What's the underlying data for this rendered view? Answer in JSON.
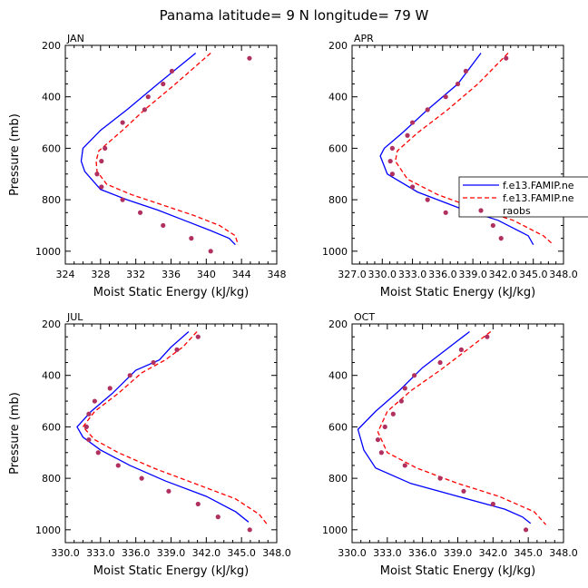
{
  "figure_title": "Panama   latitude= 9 N longitude= 79 W",
  "legend": {
    "entries": [
      {
        "label": "f.e13.FAMIP.ne",
        "color": "#0000ff",
        "dash": "solid"
      },
      {
        "label": "f.e13.FAMIP.ne",
        "color": "#ff0000",
        "dash": "dashed"
      },
      {
        "label": "raobs",
        "color": "#b03060",
        "marker": "dot"
      }
    ]
  },
  "colors": {
    "model1": "#0000ff",
    "model2": "#ff0000",
    "obs": "#b03060"
  },
  "chart_data": [
    {
      "type": "line",
      "panel_label": "JAN",
      "xlabel": "Moist Static Energy (kJ/kg)",
      "ylabel": "Pressure (mb)",
      "xlim": [
        324,
        348
      ],
      "ylim": [
        1050,
        200
      ],
      "xticks": [
        324,
        328,
        332,
        336,
        340,
        344,
        348
      ],
      "xtick_labels": [
        "324",
        "328",
        "332",
        "336",
        "340",
        "344",
        "348"
      ],
      "yticks": [
        200,
        400,
        600,
        800,
        1000
      ],
      "ytick_labels": [
        "200",
        "400",
        "600",
        "800",
        "1000"
      ],
      "show_ylabel": true,
      "series": [
        {
          "name": "f.e13.FAMIP.ne",
          "style": "model1",
          "x": [
            338.8,
            334.5,
            331,
            328,
            326,
            325.8,
            326.2,
            328,
            331,
            334.5,
            337.5,
            340.5,
            342.6,
            343.3
          ],
          "y": [
            230,
            350,
            450,
            530,
            600,
            650,
            690,
            760,
            800,
            840,
            880,
            920,
            950,
            975
          ]
        },
        {
          "name": "f.e13.FAMIP.ne",
          "style": "model2",
          "x": [
            340.5,
            336.5,
            333,
            330.5,
            327.8,
            327.5,
            327.6,
            328.7,
            331.5,
            335,
            338.5,
            341.5,
            343.3,
            343.6
          ],
          "y": [
            230,
            350,
            450,
            530,
            610,
            650,
            690,
            740,
            780,
            820,
            860,
            900,
            940,
            975
          ]
        },
        {
          "name": "raobs",
          "style": "obs",
          "x": [
            344.9,
            336.1,
            335.1,
            333.4,
            333.0,
            330.5,
            328.5,
            328.1,
            327.6,
            328.1,
            330.5,
            332.5,
            335.1,
            338.3,
            340.5
          ],
          "y": [
            250,
            300,
            350,
            400,
            450,
            500,
            600,
            650,
            700,
            750,
            800,
            850,
            900,
            950,
            1000
          ]
        }
      ]
    },
    {
      "type": "line",
      "panel_label": "APR",
      "xlabel": "Moist Static Energy (kJ/kg)",
      "ylabel": "",
      "xlim": [
        327.0,
        348.0
      ],
      "ylim": [
        1050,
        200
      ],
      "xticks": [
        327,
        330,
        333,
        336,
        339,
        342,
        345,
        348
      ],
      "xtick_labels": [
        "327.0",
        "330.0",
        "333.0",
        "336.0",
        "339.0",
        "342.0",
        "345.0",
        "348.0"
      ],
      "yticks": [
        200,
        400,
        600,
        800,
        1000
      ],
      "ytick_labels": [
        "200",
        "400",
        "600",
        "800",
        "1000"
      ],
      "show_ylabel": false,
      "series": [
        {
          "name": "f.e13.FAMIP.ne",
          "style": "model1",
          "x": [
            339.8,
            337.5,
            334.5,
            332,
            330.2,
            329.8,
            330.5,
            333.5,
            337.5,
            341.5,
            344.5,
            345.0
          ],
          "y": [
            230,
            350,
            450,
            540,
            600,
            630,
            700,
            770,
            830,
            880,
            940,
            975
          ]
        },
        {
          "name": "f.e13.FAMIP.ne",
          "style": "model2",
          "x": [
            342.5,
            339.5,
            336.5,
            333.5,
            331.5,
            331.3,
            332.5,
            335.5,
            339,
            343,
            346,
            347.0
          ],
          "y": [
            230,
            350,
            450,
            540,
            610,
            650,
            720,
            780,
            830,
            880,
            940,
            975
          ]
        },
        {
          "name": "raobs",
          "style": "obs",
          "x": [
            342.3,
            338.3,
            337.5,
            336.3,
            334.5,
            333.0,
            332.5,
            331.0,
            330.8,
            331.0,
            333.0,
            334.5,
            336.3,
            339.5,
            341.0,
            341.8
          ],
          "y": [
            250,
            300,
            350,
            400,
            450,
            500,
            550,
            600,
            650,
            700,
            750,
            800,
            850,
            825,
            900,
            950
          ]
        }
      ]
    },
    {
      "type": "line",
      "panel_label": "JUL",
      "xlabel": "Moist Static Energy (kJ/kg)",
      "ylabel": "Pressure (mb)",
      "xlim": [
        330.0,
        348.0
      ],
      "ylim": [
        1050,
        200
      ],
      "xticks": [
        330,
        333,
        336,
        339,
        342,
        345,
        348
      ],
      "xtick_labels": [
        "330.0",
        "333.0",
        "336.0",
        "339.0",
        "342.0",
        "345.0",
        "348.0"
      ],
      "yticks": [
        200,
        400,
        600,
        800,
        1000
      ],
      "ytick_labels": [
        "200",
        "400",
        "600",
        "800",
        "1000"
      ],
      "show_ylabel": true,
      "series": [
        {
          "name": "f.e13.FAMIP.ne",
          "style": "model1",
          "x": [
            340.5,
            339.0,
            338.0,
            336.0,
            334.0,
            332.2,
            331.0,
            331.5,
            333.0,
            335.5,
            338.5,
            342.0,
            344.5,
            345.6
          ],
          "y": [
            230,
            290,
            340,
            380,
            470,
            540,
            600,
            640,
            690,
            750,
            810,
            870,
            930,
            970
          ]
        },
        {
          "name": "f.e13.FAMIP.ne",
          "style": "model2",
          "x": [
            341.2,
            340.0,
            338.5,
            336.5,
            334.5,
            332.5,
            331.5,
            332.5,
            334.5,
            337.5,
            341.0,
            344.5,
            346.5,
            347.2
          ],
          "y": [
            230,
            290,
            340,
            390,
            470,
            540,
            600,
            650,
            700,
            760,
            820,
            880,
            940,
            980
          ]
        },
        {
          "name": "raobs",
          "style": "obs",
          "x": [
            341.3,
            339.5,
            337.5,
            335.5,
            333.8,
            332.5,
            332.0,
            331.8,
            332.0,
            332.8,
            334.5,
            336.5,
            338.8,
            341.3,
            343.0,
            345.7
          ],
          "y": [
            250,
            300,
            350,
            400,
            450,
            500,
            550,
            600,
            650,
            700,
            750,
            800,
            850,
            900,
            950,
            1000
          ]
        }
      ]
    },
    {
      "type": "line",
      "panel_label": "OCT",
      "xlabel": "Moist Static Energy (kJ/kg)",
      "ylabel": "",
      "xlim": [
        330.0,
        348.0
      ],
      "ylim": [
        1050,
        200
      ],
      "xticks": [
        330,
        333,
        336,
        339,
        342,
        345,
        348
      ],
      "xtick_labels": [
        "330.0",
        "333.0",
        "336.0",
        "339.0",
        "342.0",
        "345.0",
        "348.0"
      ],
      "yticks": [
        200,
        400,
        600,
        800,
        1000
      ],
      "ytick_labels": [
        "200",
        "400",
        "600",
        "800",
        "1000"
      ],
      "show_ylabel": false,
      "series": [
        {
          "name": "f.e13.FAMIP.ne",
          "style": "model1",
          "x": [
            340.0,
            338.0,
            336.0,
            334.0,
            332.0,
            330.5,
            331.0,
            332.0,
            335.0,
            339.0,
            343.0,
            344.5,
            345.2
          ],
          "y": [
            230,
            300,
            370,
            460,
            540,
            610,
            690,
            760,
            820,
            870,
            920,
            950,
            975
          ]
        },
        {
          "name": "f.e13.FAMIP.ne",
          "style": "model2",
          "x": [
            341.8,
            339.8,
            337.5,
            335.0,
            333.0,
            332.2,
            333.0,
            335.5,
            339.0,
            342.5,
            345.5,
            346.5
          ],
          "y": [
            230,
            300,
            380,
            460,
            540,
            620,
            700,
            760,
            820,
            870,
            930,
            980
          ]
        },
        {
          "name": "raobs",
          "style": "obs",
          "x": [
            341.5,
            339.3,
            337.5,
            335.3,
            334.5,
            334.2,
            333.5,
            332.8,
            332.2,
            332.5,
            334.5,
            337.5,
            339.5,
            342.0,
            344.8
          ],
          "y": [
            250,
            300,
            350,
            400,
            450,
            500,
            550,
            600,
            650,
            700,
            750,
            800,
            850,
            900,
            1000
          ]
        }
      ]
    }
  ]
}
